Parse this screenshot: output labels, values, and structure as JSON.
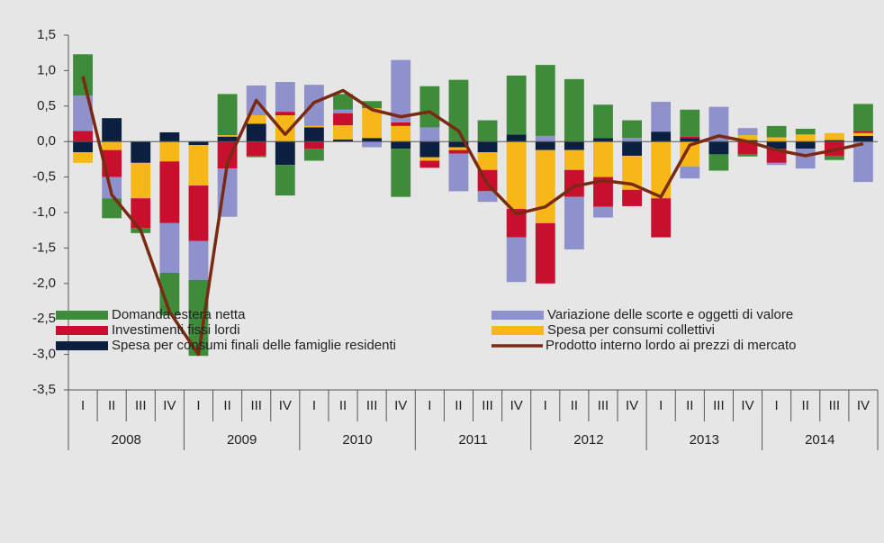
{
  "chart_data": {
    "type": "bar",
    "categories": [
      "I",
      "II",
      "III",
      "IV",
      "I",
      "II",
      "III",
      "IV",
      "I",
      "II",
      "III",
      "IV",
      "I",
      "II",
      "III",
      "IV",
      "I",
      "II",
      "III",
      "IV",
      "I",
      "II",
      "III",
      "IV",
      "I",
      "II",
      "III",
      "IV"
    ],
    "years": [
      "2008",
      "2009",
      "2010",
      "2011",
      "2012",
      "2013",
      "2014"
    ],
    "stacked": true,
    "series": [
      {
        "name": "Spesa per consumi finali delle famiglie residenti",
        "color": "#0b2040",
        "values": [
          -0.15,
          0.33,
          -0.3,
          0.13,
          -0.05,
          0.07,
          0.25,
          -0.33,
          0.2,
          0.03,
          0.05,
          -0.1,
          -0.22,
          -0.08,
          -0.15,
          0.1,
          -0.12,
          -0.12,
          0.05,
          -0.2,
          0.14,
          0.05,
          -0.18,
          0.02,
          -0.1,
          -0.1,
          0.02,
          0.08
        ]
      },
      {
        "name": "Spesa per consumi collettivi",
        "color": "#f8b719",
        "values": [
          -0.15,
          -0.12,
          -0.5,
          -0.28,
          -0.57,
          0.02,
          0.12,
          0.37,
          0.02,
          0.2,
          0.42,
          0.22,
          -0.05,
          -0.04,
          -0.25,
          -0.95,
          -1.03,
          -0.28,
          -0.5,
          -0.48,
          -0.8,
          -0.35,
          0,
          0.07,
          0.06,
          0.1,
          0.1,
          0.04
        ]
      },
      {
        "name": "Investimenti fissi lordi",
        "color": "#c8102e",
        "values": [
          0.15,
          -0.38,
          -0.42,
          -0.87,
          -0.78,
          -0.38,
          -0.2,
          0.05,
          -0.1,
          0.17,
          0,
          0.05,
          -0.1,
          -0.05,
          -0.3,
          -0.4,
          -0.85,
          -0.38,
          -0.42,
          -0.23,
          -0.55,
          0.02,
          0,
          -0.18,
          -0.2,
          0,
          -0.2,
          0.03
        ]
      },
      {
        "name": "Variazione delle scorte e oggetti di valore",
        "color": "#8f91cc",
        "values": [
          0.5,
          -0.3,
          0,
          -0.7,
          -0.55,
          -0.68,
          0.42,
          0.42,
          0.58,
          0.05,
          -0.08,
          0.88,
          0.2,
          -0.53,
          -0.15,
          -0.63,
          0.08,
          -0.74,
          -0.15,
          0.05,
          0.42,
          -0.17,
          0.49,
          0.1,
          -0.03,
          -0.28,
          0,
          -0.57
        ]
      },
      {
        "name": "Domanda estera netta",
        "color": "#3e8b3a",
        "values": [
          0.58,
          -0.28,
          -0.07,
          -0.6,
          -1.07,
          0.58,
          -0.02,
          -0.43,
          -0.17,
          0.22,
          0.1,
          -0.68,
          0.58,
          0.87,
          0.3,
          0.83,
          1.0,
          0.88,
          0.47,
          0.25,
          0,
          0.38,
          -0.23,
          -0.03,
          0.16,
          0.08,
          -0.06,
          0.38
        ]
      }
    ],
    "line": {
      "name": "Prodotto interno lordo ai prezzi di mercato",
      "color": "#7a2a12",
      "values": [
        0.92,
        -0.75,
        -1.25,
        -2.4,
        -3.0,
        -0.3,
        0.58,
        0.1,
        0.55,
        0.72,
        0.45,
        0.35,
        0.42,
        0.15,
        -0.6,
        -1.02,
        -0.92,
        -0.63,
        -0.55,
        -0.6,
        -0.78,
        -0.05,
        0.08,
        0.0,
        -0.12,
        -0.2,
        -0.12,
        -0.03
      ]
    },
    "ylim": [
      -3.5,
      1.5
    ],
    "yticks": [
      {
        "value": 1.5,
        "label": "1,5"
      },
      {
        "value": 1,
        "label": "1,0"
      },
      {
        "value": 0.5,
        "label": "0,5"
      },
      {
        "value": 0,
        "label": "0,0"
      },
      {
        "value": -0.5,
        "label": "-0,5"
      },
      {
        "value": -1,
        "label": "-1,0"
      },
      {
        "value": -1.5,
        "label": "-1,5"
      },
      {
        "value": -2,
        "label": "-2,0"
      },
      {
        "value": -2.5,
        "label": "-2,5"
      },
      {
        "value": -3,
        "label": "-3,0"
      },
      {
        "value": -3.5,
        "label": "-3,5"
      }
    ],
    "grid": false,
    "legend": "bottom"
  }
}
